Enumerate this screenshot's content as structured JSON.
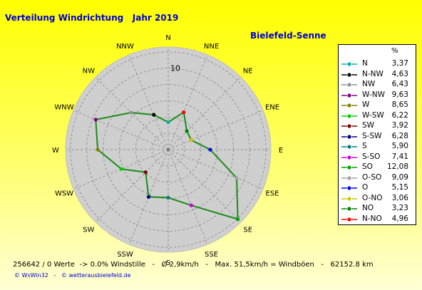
{
  "title": "Verteilung Windrichtung   Jahr 2019",
  "station": "Bielefeld-Senne",
  "footer": "256642 / 0 Werte  -> 0.0% Windstille   -   Ø 2,9km/h   -   Max. 51,5km/h = Windböen   -   62152.8 km",
  "credit": "© WsWin32   -   © wetterausbielefeld.de",
  "colors": {
    "polygon": "#1a8c1a",
    "circle": "#cfcfcf",
    "text_blue": "#0000cc"
  },
  "chart_data": {
    "type": "radar",
    "unit": "%",
    "scale_label": "10",
    "radial_max": 12.6,
    "directions": [
      "N",
      "NNE",
      "NE",
      "ENE",
      "E",
      "ESE",
      "SE",
      "SSE",
      "S",
      "SSW",
      "SW",
      "WSW",
      "W",
      "WNW",
      "NW",
      "NNW"
    ],
    "values": [
      {
        "dir": "N",
        "value": 3.37
      },
      {
        "dir": "NNE",
        "value": 4.96
      },
      {
        "dir": "NE",
        "value": 3.23
      },
      {
        "dir": "ENE",
        "value": 3.06
      },
      {
        "dir": "E",
        "value": 5.15
      },
      {
        "dir": "ESE",
        "value": 9.09
      },
      {
        "dir": "SE",
        "value": 12.08
      },
      {
        "dir": "SSE",
        "value": 7.41
      },
      {
        "dir": "S",
        "value": 5.9
      },
      {
        "dir": "SSW",
        "value": 6.28
      },
      {
        "dir": "SW",
        "value": 3.92
      },
      {
        "dir": "WSW",
        "value": 6.22
      },
      {
        "dir": "W",
        "value": 8.65
      },
      {
        "dir": "WNW",
        "value": 9.63
      },
      {
        "dir": "NW",
        "value": 6.43
      },
      {
        "dir": "NNW",
        "value": 4.63
      }
    ],
    "legend": [
      {
        "label": "N",
        "value": "3,37",
        "color": "#00b0b0"
      },
      {
        "label": "N-NW",
        "value": "4,63",
        "color": "#000000"
      },
      {
        "label": "NW",
        "value": "6,43",
        "color": "#909090"
      },
      {
        "label": "W-NW",
        "value": "9,63",
        "color": "#800080"
      },
      {
        "label": "W",
        "value": "8,65",
        "color": "#808000"
      },
      {
        "label": "W-SW",
        "value": "6,22",
        "color": "#00cc00"
      },
      {
        "label": "SW",
        "value": "3,92",
        "color": "#800000"
      },
      {
        "label": "S-SW",
        "value": "6,28",
        "color": "#000080"
      },
      {
        "label": "S",
        "value": "5,90",
        "color": "#008080"
      },
      {
        "label": "S-SO",
        "value": "7,41",
        "color": "#cc00cc"
      },
      {
        "label": "SO",
        "value": "12,08",
        "color": "#00a000"
      },
      {
        "label": "O-SO",
        "value": "9,09",
        "color": "#a0a0a0"
      },
      {
        "label": "O",
        "value": "5,15",
        "color": "#0000ff"
      },
      {
        "label": "O-NO",
        "value": "3,06",
        "color": "#c8c800"
      },
      {
        "label": "NO",
        "value": "3,23",
        "color": "#008000"
      },
      {
        "label": "N-NO",
        "value": "4,96",
        "color": "#ff0000"
      }
    ]
  }
}
